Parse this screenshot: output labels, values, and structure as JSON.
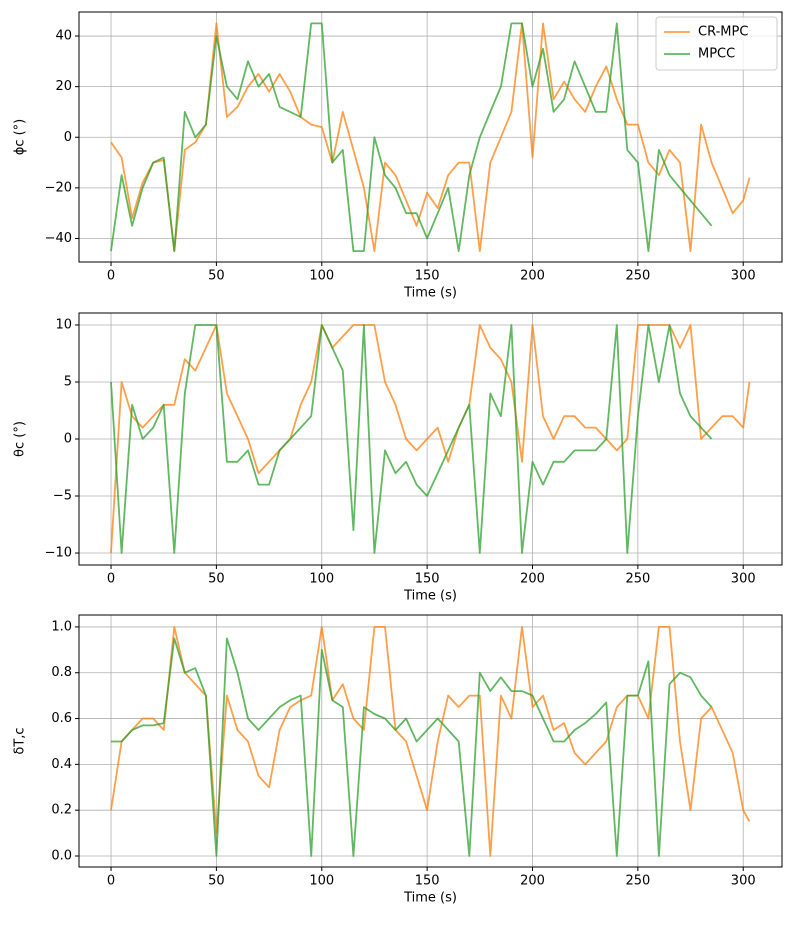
{
  "chart_data": [
    {
      "type": "line",
      "x_label": "Time (s)",
      "y_label": "ϕc (°)",
      "grid": true,
      "legend": "upper right",
      "x": [
        0,
        5,
        10,
        15,
        20,
        25,
        30,
        35,
        40,
        45,
        50,
        55,
        60,
        65,
        70,
        75,
        80,
        85,
        90,
        95,
        100,
        105,
        110,
        115,
        120,
        125,
        130,
        135,
        140,
        145,
        150,
        155,
        160,
        165,
        170,
        175,
        180,
        185,
        190,
        195,
        200,
        205,
        210,
        215,
        220,
        225,
        230,
        235,
        240,
        245,
        250,
        255,
        260,
        265,
        270,
        275,
        280,
        285,
        290,
        295,
        300,
        303
      ],
      "xlim": [
        -15.2,
        318.4
      ],
      "xticks": [
        0,
        50,
        100,
        150,
        200,
        250,
        300
      ],
      "ylim": [
        -49.3,
        49.5
      ],
      "yticks": [
        {
          "value": -40,
          "label": "−40"
        },
        {
          "value": -20,
          "label": "−20"
        },
        0,
        20,
        40
      ],
      "series": [
        {
          "name": "CR-MPC",
          "color": "#ff7f0e",
          "values": [
            -2,
            -8,
            -32,
            -18,
            -10,
            -9,
            -45,
            -5,
            -2,
            5,
            45,
            8,
            12,
            20,
            25,
            18,
            25,
            18,
            8,
            5,
            4,
            -10,
            10,
            -5,
            -20,
            -45,
            -10,
            -15,
            -25,
            -35,
            -22,
            -28,
            -15,
            -10,
            -10,
            -45,
            -10,
            0,
            10,
            45,
            -8,
            45,
            15,
            22,
            15,
            10,
            20,
            28,
            15,
            5,
            5,
            -10,
            -15,
            -5,
            -10,
            -45,
            5,
            -10,
            -20,
            -30,
            -25,
            -16
          ]
        },
        {
          "name": "MPCC",
          "color": "#2ca02c",
          "values": [
            -45,
            -15,
            -35,
            -20,
            -10,
            -8,
            -45,
            10,
            0,
            5,
            40,
            20,
            15,
            30,
            20,
            25,
            12,
            10,
            8,
            45,
            45,
            -10,
            -5,
            -45,
            -45,
            0,
            -15,
            -20,
            -30,
            -30,
            -40,
            -30,
            -20,
            -45,
            -15,
            0,
            10,
            20,
            45,
            45,
            20,
            35,
            10,
            15,
            30,
            20,
            10,
            10,
            45,
            -5,
            -10,
            -45,
            -5,
            -15,
            -20,
            -25,
            -30,
            -35,
            null,
            null,
            null,
            null
          ]
        }
      ]
    },
    {
      "type": "line",
      "x_label": "Time (s)",
      "y_label": "θc (°)",
      "grid": true,
      "x": [
        0,
        5,
        10,
        15,
        20,
        25,
        30,
        35,
        40,
        45,
        50,
        55,
        60,
        65,
        70,
        75,
        80,
        85,
        90,
        95,
        100,
        105,
        110,
        115,
        120,
        125,
        130,
        135,
        140,
        145,
        150,
        155,
        160,
        165,
        170,
        175,
        180,
        185,
        190,
        195,
        200,
        205,
        210,
        215,
        220,
        225,
        230,
        235,
        240,
        245,
        250,
        255,
        260,
        265,
        270,
        275,
        280,
        285,
        290,
        295,
        300,
        303
      ],
      "xlim": [
        -15.2,
        318.4
      ],
      "xticks": [
        0,
        50,
        100,
        150,
        200,
        250,
        300
      ],
      "ylim": [
        -11.05,
        11.05
      ],
      "yticks": [
        {
          "value": -10,
          "label": "−10"
        },
        {
          "value": -5,
          "label": "−5"
        },
        0,
        5,
        10
      ],
      "series": [
        {
          "name": "CR-MPC",
          "color": "#ff7f0e",
          "values": [
            -10,
            5,
            2,
            1,
            2,
            3,
            3,
            7,
            6,
            8,
            10,
            4,
            2,
            0,
            -3,
            -2,
            -1,
            0,
            3,
            5,
            10,
            8,
            9,
            10,
            10,
            10,
            5,
            3,
            0,
            -1,
            0,
            1,
            -2,
            1,
            3,
            10,
            8,
            7,
            5,
            -2,
            10,
            2,
            0,
            2,
            2,
            1,
            1,
            0,
            -1,
            0,
            10,
            10,
            10,
            10,
            8,
            10,
            0,
            1,
            2,
            2,
            1,
            5
          ]
        },
        {
          "name": "MPCC",
          "color": "#2ca02c",
          "values": [
            5,
            -10,
            3,
            0,
            1,
            3,
            -10,
            4,
            10,
            10,
            10,
            -2,
            -2,
            -1,
            -4,
            -4,
            -1,
            0,
            1,
            2,
            10,
            8,
            6,
            -8,
            10,
            -10,
            -1,
            -3,
            -2,
            -4,
            -5,
            -3,
            -1,
            1,
            3,
            -10,
            4,
            2,
            10,
            -10,
            -2,
            -4,
            -2,
            -2,
            -1,
            -1,
            -1,
            0,
            10,
            -10,
            2,
            10,
            5,
            10,
            4,
            2,
            1,
            0,
            null,
            null,
            null,
            null
          ]
        }
      ]
    },
    {
      "type": "line",
      "x_label": "Time (s)",
      "y_label": "δT,c",
      "grid": true,
      "x": [
        0,
        5,
        10,
        15,
        20,
        25,
        30,
        35,
        40,
        45,
        50,
        55,
        60,
        65,
        70,
        75,
        80,
        85,
        90,
        95,
        100,
        105,
        110,
        115,
        120,
        125,
        130,
        135,
        140,
        145,
        150,
        155,
        160,
        165,
        170,
        175,
        180,
        185,
        190,
        195,
        200,
        205,
        210,
        215,
        220,
        225,
        230,
        235,
        240,
        245,
        250,
        255,
        260,
        265,
        270,
        275,
        280,
        285,
        290,
        295,
        300,
        303
      ],
      "xlim": [
        -15.2,
        318.4
      ],
      "xticks": [
        0,
        50,
        100,
        150,
        200,
        250,
        300
      ],
      "ylim": [
        -0.048,
        1.052
      ],
      "yticks": [
        {
          "value": 0,
          "label": "0.0"
        },
        0.2,
        0.4,
        0.6,
        0.8,
        {
          "value": 1,
          "label": "1.0"
        }
      ],
      "series": [
        {
          "name": "CR-MPC",
          "color": "#ff7f0e",
          "values": [
            0.2,
            0.5,
            0.55,
            0.6,
            0.6,
            0.55,
            1.0,
            0.8,
            0.75,
            0.7,
            0.1,
            0.7,
            0.55,
            0.5,
            0.35,
            0.3,
            0.55,
            0.65,
            0.68,
            0.7,
            1.0,
            0.68,
            0.75,
            0.6,
            0.55,
            1.0,
            1.0,
            0.55,
            0.5,
            0.35,
            0.2,
            0.5,
            0.7,
            0.65,
            0.7,
            0.7,
            0.0,
            0.7,
            0.6,
            1.0,
            0.65,
            0.7,
            0.55,
            0.58,
            0.45,
            0.4,
            0.45,
            0.5,
            0.65,
            0.7,
            0.7,
            0.6,
            1.0,
            1.0,
            0.5,
            0.2,
            0.6,
            0.65,
            0.55,
            0.45,
            0.2,
            0.15
          ]
        },
        {
          "name": "MPCC",
          "color": "#2ca02c",
          "values": [
            0.5,
            0.5,
            0.55,
            0.57,
            0.57,
            0.58,
            0.95,
            0.8,
            0.82,
            0.7,
            0.0,
            0.95,
            0.8,
            0.6,
            0.55,
            0.6,
            0.65,
            0.68,
            0.7,
            0.0,
            0.9,
            0.68,
            0.65,
            0.0,
            0.65,
            0.62,
            0.6,
            0.55,
            0.6,
            0.5,
            0.55,
            0.6,
            0.55,
            0.5,
            0.0,
            0.8,
            0.72,
            0.78,
            0.72,
            0.72,
            0.7,
            0.6,
            0.5,
            0.5,
            0.55,
            0.58,
            0.62,
            0.67,
            0.0,
            0.7,
            0.7,
            0.85,
            0.0,
            0.75,
            0.8,
            0.78,
            0.7,
            0.65,
            null,
            null,
            null,
            null
          ]
        }
      ]
    }
  ]
}
